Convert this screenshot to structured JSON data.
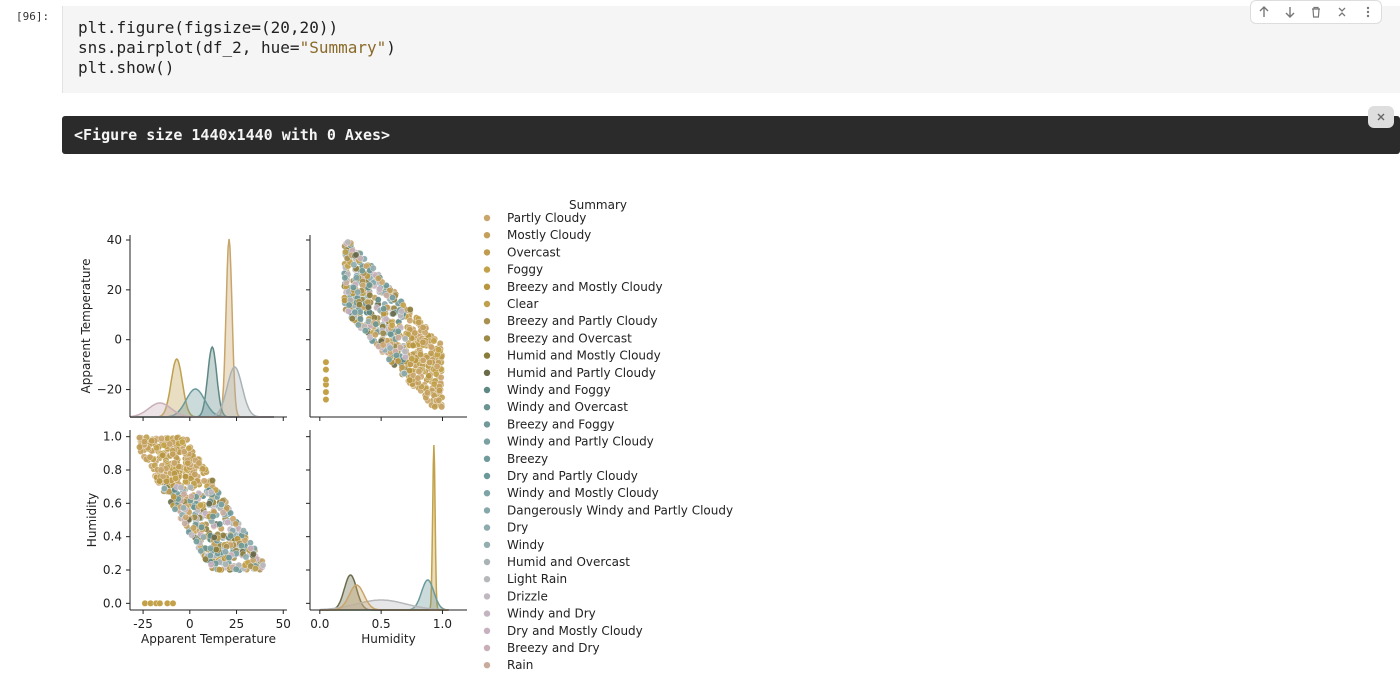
{
  "cell": {
    "prompt": "[96]:",
    "code_lines": [
      "plt.figure(figsize=(20,20))",
      "sns.pairplot(df_2, hue=\"Summary\")",
      "plt.show()"
    ],
    "string_token": "\"Summary\""
  },
  "toolbar": {
    "icons": [
      "arrow-up-icon",
      "arrow-down-icon",
      "trash-icon",
      "collapse-icon",
      "more-icon"
    ]
  },
  "output": {
    "text": "<Figure size 1440x1440 with 0 Axes>",
    "close_icon": "close-icon"
  },
  "chart_data": {
    "type": "scatter",
    "title": "",
    "variables": [
      "Apparent Temperature",
      "Humidity"
    ],
    "axes": {
      "Apparent Temperature": {
        "range": [
          -32,
          52
        ],
        "ticks": [
          -25,
          0,
          25,
          50
        ],
        "tick_labels": [
          "-25",
          "0",
          "25",
          "50"
        ],
        "y_ticks": [
          -20,
          0,
          20,
          40
        ],
        "y_tick_labels": [
          "−20",
          "0",
          "20",
          "40"
        ]
      },
      "Humidity": {
        "range": [
          -0.08,
          1.2
        ],
        "ticks": [
          0.0,
          0.5,
          1.0
        ],
        "tick_labels": [
          "0.0",
          "0.5",
          "1.0"
        ],
        "y_ticks": [
          0.0,
          0.2,
          0.4,
          0.6,
          0.8,
          1.0
        ],
        "y_tick_labels": [
          "0.0",
          "0.2",
          "0.4",
          "0.6",
          "0.8",
          "1.0"
        ]
      }
    },
    "legend": {
      "title": "Summary",
      "placement": "right",
      "entries": [
        {
          "label": "Partly Cloudy",
          "color": "#c9a56b"
        },
        {
          "label": "Mostly Cloudy",
          "color": "#c4a05c"
        },
        {
          "label": "Overcast",
          "color": "#bf9c4f"
        },
        {
          "label": "Foggy",
          "color": "#c2a148"
        },
        {
          "label": "Breezy and Mostly Cloudy",
          "color": "#b89640"
        },
        {
          "label": "Clear",
          "color": "#bfa04e"
        },
        {
          "label": "Breezy and Partly Cloudy",
          "color": "#a89050"
        },
        {
          "label": "Breezy and Overcast",
          "color": "#9c8a48"
        },
        {
          "label": "Humid and Mostly Cloudy",
          "color": "#8a7d3c"
        },
        {
          "label": "Humid and Partly Cloudy",
          "color": "#6b6b4a"
        },
        {
          "label": "Windy and Foggy",
          "color": "#5e8884"
        },
        {
          "label": "Windy and Overcast",
          "color": "#6a9592"
        },
        {
          "label": "Breezy and Foggy",
          "color": "#71999a"
        },
        {
          "label": "Windy and Partly Cloudy",
          "color": "#7aa0a1"
        },
        {
          "label": "Breezy",
          "color": "#6f9c9a"
        },
        {
          "label": "Dry and Partly Cloudy",
          "color": "#6b999a"
        },
        {
          "label": "Windy and Mostly Cloudy",
          "color": "#7ea4a6"
        },
        {
          "label": "Dangerously Windy and Partly Cloudy",
          "color": "#86a8ab"
        },
        {
          "label": "Dry",
          "color": "#8dabad"
        },
        {
          "label": "Windy",
          "color": "#94aeb0"
        },
        {
          "label": "Humid and Overcast",
          "color": "#a9b3b5"
        },
        {
          "label": "Light Rain",
          "color": "#b7b8bc"
        },
        {
          "label": "Drizzle",
          "color": "#c0b8c0"
        },
        {
          "label": "Windy and Dry",
          "color": "#c4b4c2"
        },
        {
          "label": "Dry and Mostly Cloudy",
          "color": "#c7b1c0"
        },
        {
          "label": "Breezy and Dry",
          "color": "#c9aeb8"
        },
        {
          "label": "Rain",
          "color": "#c9ab9e"
        }
      ]
    }
  }
}
